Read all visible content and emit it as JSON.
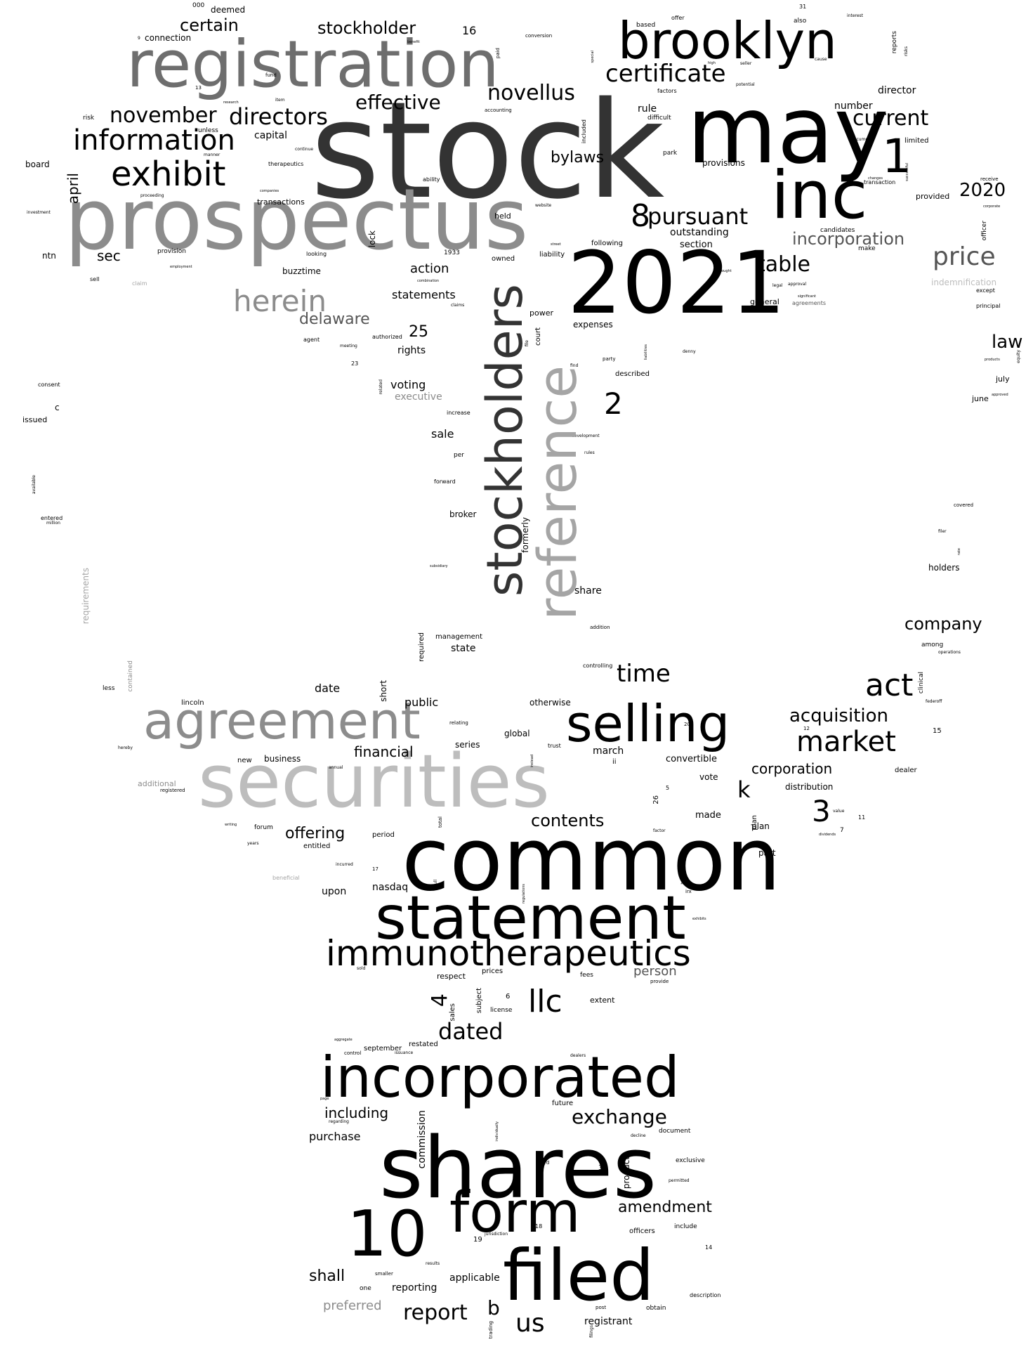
{
  "title": "Word cloud",
  "colors": {
    "background": "#ffffff",
    "black": "#000000",
    "dark": "#333333",
    "gray_dark": "#555555",
    "gray_mid": "#6e6e6e",
    "gray": "#8c8c8c",
    "gray_light": "#a5a5a5",
    "gray_pale": "#bdbdbd"
  },
  "words": {
    "stock": "stock",
    "may": "may",
    "common": "common",
    "shares": "shares",
    "prospectus": "prospectus",
    "registration": "registration",
    "securities": "securities",
    "year_2021": "2021",
    "inc": "inc",
    "brooklyn": "brooklyn",
    "statement": "statement",
    "incorporated": "incorporated",
    "stockholders": "stockholders",
    "reference": "reference",
    "filed": "filed",
    "agreement": "agreement",
    "selling": "selling",
    "form": "form",
    "ten": "10",
    "immunotherapeutics": "immunotherapeutics",
    "exhibit": "exhibit",
    "information": "information",
    "herein": "herein",
    "one": "1",
    "certificate": "certificate",
    "novellus": "novellus",
    "pursuant": "pursuant",
    "eight": "8",
    "act": "act",
    "market": "market",
    "directors": "directors",
    "november": "november",
    "effective": "effective",
    "stockholder": "stockholder",
    "certain": "certain",
    "current": "current",
    "price": "price",
    "table": "table",
    "incorporation": "incorporation",
    "time": "time",
    "acquisition": "acquisition",
    "llc": "llc",
    "dated": "dated",
    "exchange": "exchange",
    "amendment": "amendment",
    "report": "report",
    "us": "us",
    "company": "company",
    "law": "law",
    "two": "2",
    "three": "3",
    "four": "4",
    "k": "k",
    "b": "b",
    "year_2020": "2020",
    "delaware": "delaware",
    "contents": "contents",
    "corporation": "corporation",
    "offering": "offering",
    "sec": "sec",
    "financial": "financial",
    "bylaws": "bylaws",
    "including": "including",
    "shall": "shall",
    "purchase": "purchase",
    "applicable": "applicable",
    "reporting": "reporting",
    "preferred": "preferred",
    "registrant": "registrant",
    "person": "person",
    "nasdaq": "nasdaq",
    "upon": "upon",
    "statements": "statements",
    "action": "action",
    "rights": "rights",
    "voting": "voting",
    "executive": "executive",
    "sale": "sale",
    "date": "date",
    "public": "public",
    "business": "business",
    "april": "april",
    "capital": "capital",
    "rule": "rule",
    "number": "number",
    "director": "director",
    "outstanding": "outstanding",
    "section": "section",
    "provisions": "provisions",
    "share": "share",
    "state": "state",
    "march": "march",
    "convertible": "convertible",
    "distribution": "distribution",
    "made": "made",
    "series": "series",
    "global": "global",
    "formerly": "formerly",
    "short": "short",
    "buzztime": "buzztime",
    "ntn": "ntn",
    "board": "board",
    "connection": "connection",
    "deemed": "deemed",
    "sixteen": "16",
    "twentyfive": "25",
    "plan": "plan",
    "vote": "vote",
    "part": "part",
    "holders": "holders",
    "entitled": "entitled",
    "transactions": "transactions",
    "indemnification": "indemnification",
    "requirements": "requirements",
    "additional": "additional",
    "otherwise": "otherwise",
    "management": "management",
    "broker": "broker",
    "provided": "provided",
    "lock": "lock",
    "held": "held",
    "expenses": "expenses",
    "described": "described",
    "june": "june",
    "july": "july",
    "issued": "issued",
    "consent": "consent",
    "c": "c",
    "power": "power",
    "court": "court",
    "general": "general",
    "agreements": "agreements",
    "offer": "offer",
    "based": "based",
    "also": "also",
    "factors": "factors",
    "difficult": "difficult",
    "park": "park",
    "limited": "limited",
    "transaction": "transaction",
    "candidates": "candidates",
    "make": "make",
    "officer": "officer",
    "principal": "principal",
    "except": "except",
    "reports": "reports",
    "dealer": "dealer",
    "among": "among",
    "clinical": "clinical",
    "fifteen": "15",
    "lincoln": "lincoln",
    "less": "less",
    "new": "new",
    "forum": "forum",
    "period": "period",
    "respect": "respect",
    "prices": "prices",
    "fees": "fees",
    "extent": "extent",
    "license": "license",
    "subject": "subject",
    "sales": "sales",
    "six": "6",
    "restated": "restated",
    "september": "september",
    "commission": "commission",
    "future": "future",
    "document": "document",
    "exclusive": "exclusive",
    "thirty": "30",
    "product": "product",
    "include": "include",
    "officers": "officers",
    "nineteen": "19",
    "obtain": "obtain",
    "post": "post",
    "fourteen": "14",
    "description": "description",
    "one_word": "one",
    "eighteen": "18",
    "owned": "owned",
    "liability": "liability",
    "following": "following",
    "year_1933": "1933",
    "buzz_ii": "ii",
    "twentysix": "26",
    "five": "5",
    "seven": "7",
    "eleven": "11",
    "twelve": "12",
    "twenty": "20",
    "thirtyone": "31",
    "thirteen": "13",
    "twentythree": "23",
    "seventeen": "17",
    "zero_000": "000",
    "nine": "9",
    "risk": "risk",
    "unless": "unless",
    "therapeutics": "therapeutics",
    "continue": "continue",
    "ability": "ability",
    "accounting": "accounting",
    "included": "included",
    "paid": "paid",
    "conversion": "conversion",
    "fund": "fund",
    "research": "research",
    "looking": "looking",
    "provision": "provision",
    "sell": "sell",
    "claim": "claim",
    "investment": "investment",
    "employment": "employment",
    "agent": "agent",
    "meeting": "meeting",
    "authorized": "authorized",
    "claims": "claims",
    "combination": "combination",
    "related": "related",
    "increase": "increase",
    "per": "per",
    "forward": "forward",
    "development": "development",
    "rules": "rules",
    "subsidiary": "subsidiary",
    "required": "required",
    "relating": "relating",
    "trust": "trust",
    "controlling": "controlling",
    "addition": "addition",
    "entered": "entered",
    "million": "million",
    "available": "available",
    "contained": "contained",
    "beneficial": "beneficial",
    "incurred": "incurred",
    "full": "full",
    "total": "total",
    "value": "value",
    "dividends": "dividends",
    "factor": "factor",
    "irx": "irx",
    "exhibits": "exhibits",
    "provide": "provide",
    "sold": "sold",
    "aggregate": "aggregate",
    "control": "control",
    "issuance": "issuance",
    "dealers": "dealers",
    "decline": "decline",
    "permitted": "permitted",
    "third": "third",
    "results": "results",
    "smaller": "smaller",
    "jurisdiction": "jurisdiction",
    "trading": "trading",
    "filings": "filings",
    "covered": "covered",
    "filer": "filer",
    "federoff": "federoff",
    "operations": "operations",
    "approved": "approved",
    "products": "products",
    "equity": "equity",
    "receive": "receive",
    "corporate": "corporate",
    "significant": "significant",
    "approval": "approval",
    "legal": "legal",
    "brought": "brought",
    "denny": "denny",
    "liabilities": "liabilities",
    "party": "party",
    "find": "find",
    "file": "file",
    "website": "website",
    "street": "street",
    "cause": "cause",
    "potential": "potential",
    "high": "high",
    "seller": "seller",
    "interest": "interest",
    "risks": "risks",
    "documents": "documents",
    "changes": "changes",
    "item": "item",
    "manner": "manner",
    "proceeding": "proceeding",
    "companies": "companies",
    "successful": "successful",
    "beneficially": "beneficially",
    "regulations": "regulations",
    "instead": "instead",
    "benefit": "benefit",
    "special": "special",
    "rate": "rate",
    "hereby": "hereby",
    "writing": "writing",
    "years": "years",
    "annual": "annual",
    "regarding": "regarding",
    "page": "page",
    "registered": "registered",
    "individually": "individually"
  }
}
